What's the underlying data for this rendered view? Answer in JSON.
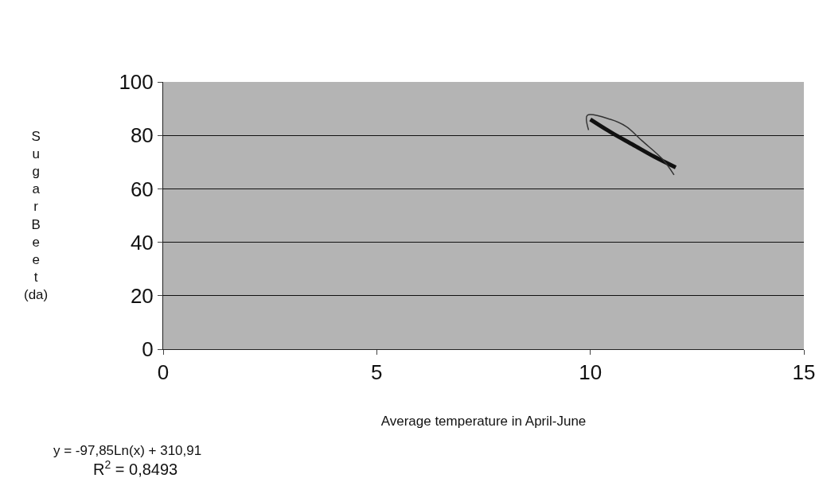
{
  "chart_data": {
    "type": "line",
    "xlabel": "Average temperature in April-June",
    "ylabel": "SugarBeet (da)",
    "xlim": [
      0,
      15
    ],
    "xticks": [
      0,
      5,
      10,
      15
    ],
    "ylim": [
      0,
      100
    ],
    "yticks": [
      0,
      20,
      40,
      60,
      80,
      100
    ],
    "grid": "y",
    "marker": "none",
    "line_style": "solid",
    "series": [
      {
        "color": "#111111",
        "x": [
          10.0,
          10.5,
          11.0,
          11.5,
          12.0
        ],
        "values": [
          86,
          81,
          76.5,
          72,
          68
        ]
      },
      {
        "color": "#333333",
        "x": [
          9.96,
          9.93,
          10.47,
          10.84,
          11.21,
          11.69,
          11.96
        ],
        "values": [
          82,
          87.5,
          86,
          83.3,
          78,
          71.1,
          65.2
        ]
      }
    ],
    "annotations": [
      "y = -97,85Ln(x) + 310,91",
      "R$^{2}$ = 0,8493"
    ]
  }
}
